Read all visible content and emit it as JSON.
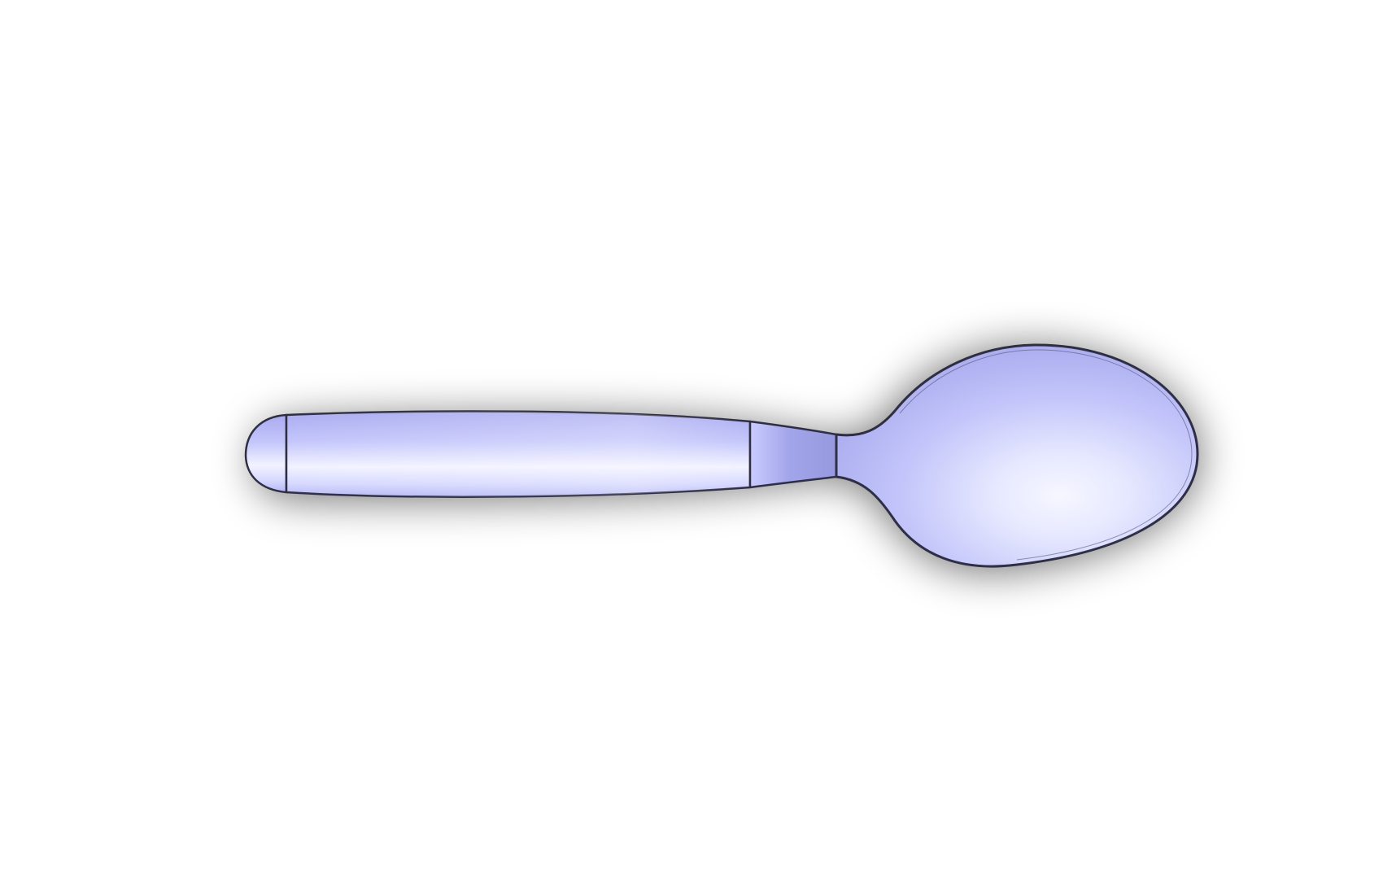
{
  "viewport": {
    "background_color": "#ffffff"
  },
  "model": {
    "object": "spoon",
    "view": "top",
    "shading": "shaded-with-edges",
    "colors": {
      "face_light": "#f4f5ff",
      "face_mid": "#c8caff",
      "face_dark": "#9a9ce6",
      "edge": "#2e2e44",
      "shadow": "#000000"
    }
  }
}
